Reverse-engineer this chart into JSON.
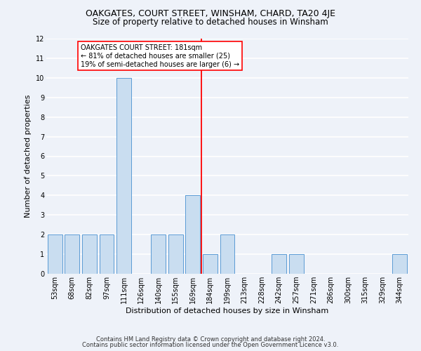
{
  "title": "OAKGATES, COURT STREET, WINSHAM, CHARD, TA20 4JE",
  "subtitle": "Size of property relative to detached houses in Winsham",
  "xlabel": "Distribution of detached houses by size in Winsham",
  "ylabel": "Number of detached properties",
  "categories": [
    "53sqm",
    "68sqm",
    "82sqm",
    "97sqm",
    "111sqm",
    "126sqm",
    "140sqm",
    "155sqm",
    "169sqm",
    "184sqm",
    "199sqm",
    "213sqm",
    "228sqm",
    "242sqm",
    "257sqm",
    "271sqm",
    "286sqm",
    "300sqm",
    "315sqm",
    "329sqm",
    "344sqm"
  ],
  "values": [
    2,
    2,
    2,
    2,
    10,
    0,
    2,
    2,
    4,
    1,
    2,
    0,
    0,
    1,
    1,
    0,
    0,
    0,
    0,
    0,
    1
  ],
  "bar_color": "#c9ddf0",
  "bar_edgecolor": "#5b9bd5",
  "vline_x_index": 8.5,
  "vline_color": "red",
  "annotation_text": "OAKGATES COURT STREET: 181sqm\n← 81% of detached houses are smaller (25)\n19% of semi-detached houses are larger (6) →",
  "annotation_box_color": "white",
  "annotation_box_edgecolor": "red",
  "ylim": [
    0,
    12
  ],
  "yticks": [
    0,
    1,
    2,
    3,
    4,
    5,
    6,
    7,
    8,
    9,
    10,
    11,
    12
  ],
  "footer1": "Contains HM Land Registry data © Crown copyright and database right 2024.",
  "footer2": "Contains public sector information licensed under the Open Government Licence v3.0.",
  "bg_color": "#eef2f9",
  "grid_color": "white",
  "title_fontsize": 9,
  "subtitle_fontsize": 8.5,
  "xlabel_fontsize": 8,
  "ylabel_fontsize": 8,
  "tick_fontsize": 7,
  "annotation_fontsize": 7,
  "footer_fontsize": 6
}
